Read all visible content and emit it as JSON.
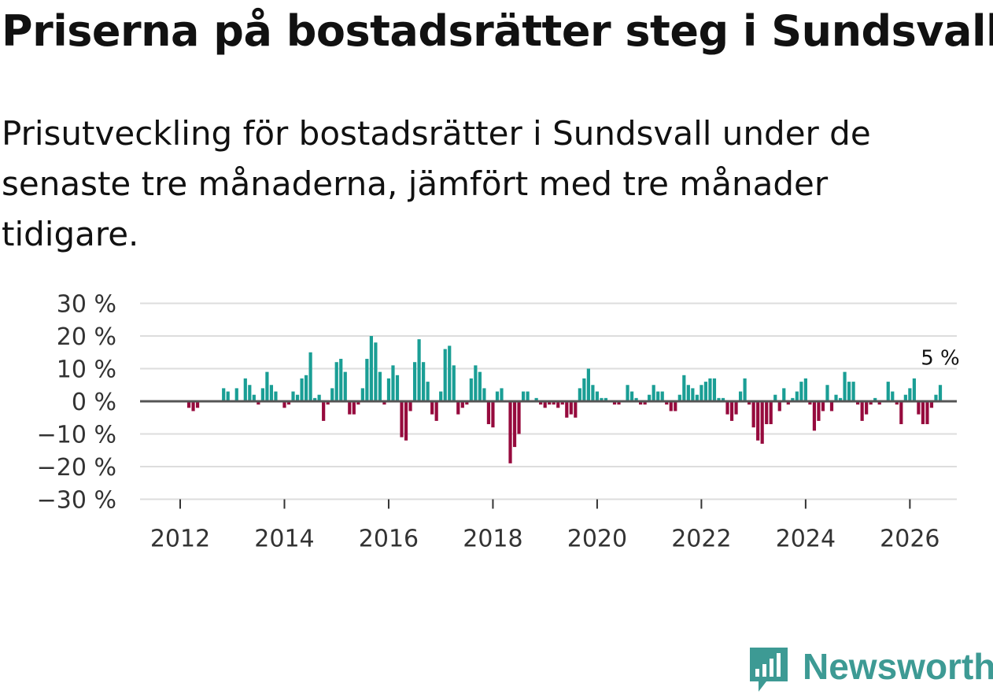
{
  "title": "Priserna på bostadsrätter steg i Sundsvall",
  "subtitle": "Prisutveckling för bostadsrätter i Sundsvall under de senaste tre månaderna, jämfört med tre månader tidigare.",
  "brand": "Newsworthy",
  "colors": {
    "positive": "#1a9e95",
    "negative": "#960a3d",
    "grid": "#dddddd",
    "zero": "#555555"
  },
  "chart_data": {
    "type": "bar",
    "title": "Priserna på bostadsrätter steg i Sundsvall",
    "xlabel": "",
    "ylabel": "",
    "start_year": 2012,
    "start_month": 1,
    "ylim": [
      -30,
      30
    ],
    "y_ticks": [
      30,
      20,
      10,
      0,
      -10,
      -20,
      -30
    ],
    "y_tick_labels": [
      "30 %",
      "20 %",
      "10 %",
      "0 %",
      "−10 %",
      "−20 %",
      "−30 %"
    ],
    "x_ticks": [
      2012,
      2014,
      2016,
      2018,
      2020,
      2022,
      2024,
      2026
    ],
    "x_tick_labels": [
      "2012",
      "2014",
      "2016",
      "2018",
      "2020",
      "2022",
      "2024",
      "2026"
    ],
    "end_label": "5 %",
    "values": [
      0,
      0,
      -2,
      -3,
      -2,
      0,
      0,
      0,
      0,
      0,
      4,
      3,
      0,
      4,
      0,
      7,
      5,
      2,
      -1,
      4,
      9,
      5,
      3,
      0,
      -2,
      -1,
      3,
      2,
      7,
      8,
      15,
      1,
      2,
      -6,
      -1,
      4,
      12,
      13,
      9,
      -4,
      -4,
      -1,
      4,
      13,
      20,
      18,
      9,
      -1,
      7,
      11,
      8,
      -11,
      -12,
      -3,
      12,
      19,
      12,
      6,
      -4,
      -6,
      3,
      16,
      17,
      11,
      -4,
      -2,
      -1,
      7,
      11,
      9,
      4,
      -7,
      -8,
      3,
      4,
      0,
      -19,
      -14,
      -10,
      3,
      3,
      0,
      1,
      -1,
      -2,
      -1,
      -1,
      -2,
      -1,
      -5,
      -4,
      -5,
      4,
      7,
      10,
      5,
      3,
      1,
      1,
      0,
      -1,
      -1,
      0,
      5,
      3,
      1,
      -1,
      -1,
      2,
      5,
      3,
      3,
      -1,
      -3,
      -3,
      2,
      8,
      5,
      4,
      2,
      5,
      6,
      7,
      7,
      1,
      1,
      -4,
      -6,
      -4,
      3,
      7,
      -1,
      -8,
      -12,
      -13,
      -7,
      -7,
      2,
      -3,
      4,
      -1,
      1,
      3,
      6,
      7,
      -1,
      -9,
      -6,
      -3,
      5,
      -3,
      2,
      1,
      9,
      6,
      6,
      -1,
      -6,
      -4,
      -1,
      1,
      -1,
      0,
      6,
      3,
      -1,
      -7,
      2,
      4,
      7,
      -4,
      -7,
      -7,
      -2,
      2,
      5
    ]
  }
}
